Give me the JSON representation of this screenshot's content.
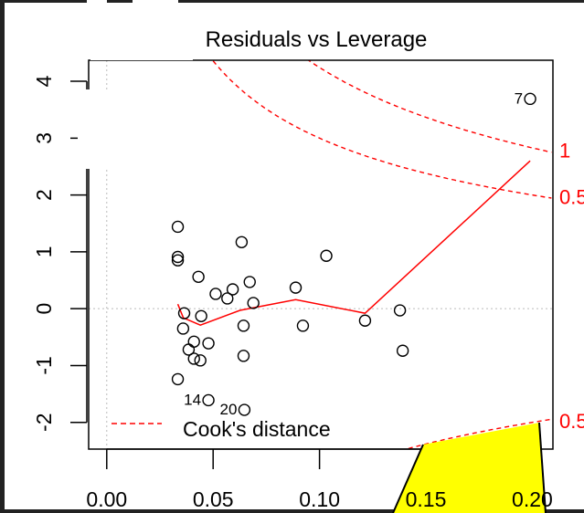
{
  "chart_data": {
    "type": "scatter",
    "title": "Residuals vs Leverage",
    "xlabel": "",
    "ylabel": "",
    "xlim": [
      -0.0085,
      0.2097
    ],
    "ylim": [
      -2.47,
      4.37
    ],
    "x_ticks": [
      "0.00",
      "0.05",
      "0.10",
      "0.15",
      "0.20"
    ],
    "x_tick_values": [
      0,
      0.05,
      0.1,
      0.15,
      0.2
    ],
    "y_ticks": [
      "-2",
      "-1",
      "0",
      "1",
      "2",
      "3",
      "4"
    ],
    "y_tick_values": [
      -2,
      -1,
      0,
      1,
      2,
      3,
      4
    ],
    "grid": false,
    "points": [
      {
        "x": 0.0334,
        "y": 1.44
      },
      {
        "x": 0.0334,
        "y": 0.91
      },
      {
        "x": 0.0334,
        "y": 0.85
      },
      {
        "x": 0.0431,
        "y": 0.56
      },
      {
        "x": 0.0634,
        "y": 1.17
      },
      {
        "x": 0.0672,
        "y": 0.47
      },
      {
        "x": 0.0592,
        "y": 0.34
      },
      {
        "x": 0.0512,
        "y": 0.26
      },
      {
        "x": 0.0567,
        "y": 0.18
      },
      {
        "x": 0.0689,
        "y": 0.1
      },
      {
        "x": 0.0888,
        "y": 0.37
      },
      {
        "x": 0.1032,
        "y": 0.93
      },
      {
        "x": 0.0364,
        "y": -0.08
      },
      {
        "x": 0.0444,
        "y": -0.13
      },
      {
        "x": 0.0359,
        "y": -0.35
      },
      {
        "x": 0.0643,
        "y": -0.3
      },
      {
        "x": 0.0922,
        "y": -0.3
      },
      {
        "x": 0.1214,
        "y": -0.21
      },
      {
        "x": 0.1378,
        "y": -0.03
      },
      {
        "x": 0.1391,
        "y": -0.74
      },
      {
        "x": 0.041,
        "y": -0.58
      },
      {
        "x": 0.0478,
        "y": -0.61
      },
      {
        "x": 0.0385,
        "y": -0.72
      },
      {
        "x": 0.041,
        "y": -0.88
      },
      {
        "x": 0.044,
        "y": -0.91
      },
      {
        "x": 0.0643,
        "y": -0.83
      },
      {
        "x": 0.0334,
        "y": -1.24
      },
      {
        "x": 0.0478,
        "y": -1.61,
        "label": "14"
      },
      {
        "x": 0.0647,
        "y": -1.78,
        "label": "20"
      },
      {
        "x": 0.199,
        "y": 3.69,
        "label": "7"
      }
    ],
    "smoother": {
      "color": "#ff0000",
      "x": [
        0.0334,
        0.036,
        0.044,
        0.0626,
        0.0888,
        0.1214,
        0.199
      ],
      "y": [
        0.08,
        -0.16,
        -0.29,
        -0.03,
        0.16,
        -0.08,
        2.6
      ]
    },
    "cooks_distance": {
      "color": "#ff0000",
      "num_params": 2,
      "levels": [
        0.5,
        1
      ],
      "level_labels": [
        "0.5",
        "1"
      ]
    },
    "legend": {
      "placement": "bottom-left",
      "entries": [
        "Cook's distance"
      ]
    },
    "reference_line_color": "#bbbbbb",
    "overlay_color": "#ffff00"
  }
}
